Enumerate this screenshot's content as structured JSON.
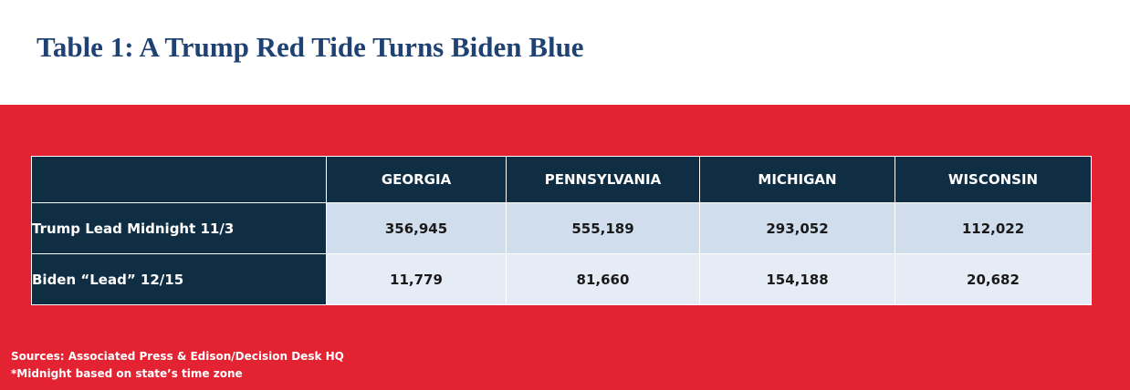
{
  "title": "Table 1: A Trump Red Tide Turns Biden Blue",
  "colors": {
    "title": "#1f4273",
    "band": "#e32232",
    "header": "#0f2e44",
    "row1": "#d0dded",
    "row2": "#e6ecf6"
  },
  "chart_data": {
    "type": "table",
    "columns": [
      "GEORGIA",
      "PENNSYLVANIA",
      "MICHIGAN",
      "WISCONSIN"
    ],
    "rows": [
      {
        "label": "Trump Lead Midnight 11/3",
        "values": [
          "356,945",
          "555,189",
          "293,052",
          "112,022"
        ]
      },
      {
        "label": "Biden “Lead” 12/15",
        "values": [
          "11,779",
          "81,660",
          "154,188",
          "20,682"
        ]
      }
    ]
  },
  "footnotes": {
    "sources": "Sources: Associated Press  & Edison/Decision Desk HQ",
    "note": "*Midnight based on state’s time zone"
  }
}
